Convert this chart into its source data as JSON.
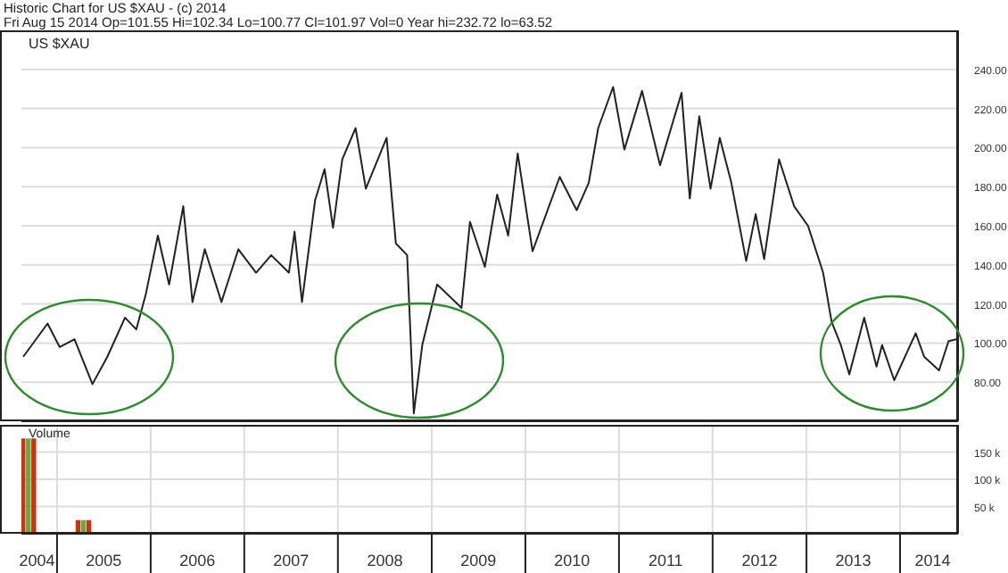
{
  "chart_data": [
    {
      "type": "line",
      "title": "Historic Chart for US $XAU - (c) 2014",
      "subtitle": "Fri Aug 15 2014  Op=101.55  Hi=102.34  Lo=100.77  Cl=101.97  Vol=0  Year hi=232.72  lo=63.52",
      "annotations": [
        "US $XAU"
      ],
      "x": [
        "2004-08-22",
        "2004-11-25",
        "2005-01-11",
        "2005-03-10",
        "2005-05-19",
        "2005-07-16",
        "2005-09-23",
        "2005-11-06",
        "2005-12-13",
        "2006-01-29",
        "2006-03-14",
        "2006-05-08",
        "2006-06-13",
        "2006-07-31",
        "2006-10-04",
        "2006-12-09",
        "2007-02-16",
        "2007-04-16",
        "2007-06-24",
        "2007-07-16",
        "2007-08-14",
        "2007-10-04",
        "2007-11-10",
        "2007-12-13",
        "2008-01-18",
        "2008-03-10",
        "2008-04-19",
        "2008-07-09",
        "2008-08-14",
        "2008-09-27",
        "2008-10-23",
        "2008-11-25",
        "2009-01-22",
        "2009-04-27",
        "2009-05-30",
        "2009-07-27",
        "2009-09-13",
        "2009-10-26",
        "2009-12-02",
        "2010-01-29",
        "2010-05-15",
        "2010-07-20",
        "2010-09-05",
        "2010-10-12",
        "2010-12-09",
        "2011-01-22",
        "2011-04-01",
        "2011-06-10",
        "2011-09-02",
        "2011-10-04",
        "2011-11-10",
        "2011-12-24",
        "2012-01-29",
        "2012-03-14",
        "2012-05-11",
        "2012-06-17",
        "2012-07-20",
        "2012-09-16",
        "2012-11-14",
        "2013-01-07",
        "2013-03-07",
        "2013-04-09",
        "2013-05-15",
        "2013-06-17",
        "2013-08-14",
        "2013-10-01",
        "2013-10-23",
        "2013-12-09",
        "2014-03-03",
        "2014-04-05",
        "2014-06-02",
        "2014-07-09",
        "2014-08-11"
      ],
      "series": [
        {
          "color": "#222222",
          "values": [
            93,
            110,
            98,
            102,
            79,
            93,
            113,
            107,
            125,
            155,
            130,
            170,
            121,
            148,
            121,
            148,
            136,
            145,
            136,
            157,
            121,
            173,
            189,
            159,
            194,
            210,
            179,
            205,
            151,
            145,
            64,
            99,
            130,
            118,
            162,
            139,
            176,
            155,
            197,
            147,
            185,
            168,
            182,
            210,
            231,
            199,
            229,
            191,
            228,
            174,
            216,
            179,
            205,
            182,
            142,
            166,
            143,
            194,
            170,
            160,
            136,
            111,
            99,
            84,
            113,
            88,
            99,
            81,
            105,
            93,
            86,
            101,
            102
          ]
        }
      ],
      "xlim": [
        "2004-08-15",
        "2014-08-15"
      ],
      "ylim": [
        60,
        260
      ],
      "yticks": [
        {
          "value": 80,
          "label": "80.00"
        },
        {
          "value": 100,
          "label": "100.00"
        },
        {
          "value": 120,
          "label": "120.00"
        },
        {
          "value": 140,
          "label": "140.00"
        },
        {
          "value": 160,
          "label": "160.00"
        },
        {
          "value": 180,
          "label": "180.00"
        },
        {
          "value": 200,
          "label": "200.00"
        },
        {
          "value": 220,
          "label": "220.00"
        },
        {
          "value": 240,
          "label": "240.00"
        }
      ],
      "grid": "y",
      "tick_labels": "y",
      "marker": "none",
      "line_style": "solid"
    },
    {
      "type": "bar",
      "title": "Volume",
      "x": [
        "2004-08-22",
        "2004-09-12",
        "2004-10-03",
        "2005-03-25",
        "2005-04-15",
        "2005-05-06"
      ],
      "series": [
        {
          "colors": [
            "#cc3311",
            "#66aa44",
            "#cc3311",
            "#cc3311",
            "#66aa44",
            "#cc3311"
          ],
          "values": [
            175000,
            175000,
            175000,
            25000,
            25000,
            25000
          ]
        }
      ],
      "xlim": [
        "2004-08-15",
        "2014-08-15"
      ],
      "xticks": [
        {
          "value": "2004-10-15",
          "label": "2004"
        },
        {
          "value": "2005-01-01",
          "label": null
        },
        {
          "value": "2005-07-02",
          "label": "2005"
        },
        {
          "value": "2006-01-01",
          "label": null
        },
        {
          "value": "2006-07-02",
          "label": "2006"
        },
        {
          "value": "2007-01-01",
          "label": null
        },
        {
          "value": "2007-07-02",
          "label": "2007"
        },
        {
          "value": "2008-01-01",
          "label": null
        },
        {
          "value": "2008-07-02",
          "label": "2008"
        },
        {
          "value": "2009-01-01",
          "label": null
        },
        {
          "value": "2009-07-02",
          "label": "2009"
        },
        {
          "value": "2010-01-01",
          "label": null
        },
        {
          "value": "2010-07-02",
          "label": "2010"
        },
        {
          "value": "2011-01-01",
          "label": null
        },
        {
          "value": "2011-07-02",
          "label": "2011"
        },
        {
          "value": "2012-01-01",
          "label": null
        },
        {
          "value": "2012-07-02",
          "label": "2012"
        },
        {
          "value": "2013-01-01",
          "label": null
        },
        {
          "value": "2013-07-02",
          "label": "2013"
        },
        {
          "value": "2014-01-01",
          "label": null
        },
        {
          "value": "2014-05-08",
          "label": "2014"
        }
      ],
      "ylim": [
        0,
        200000
      ],
      "yticks": [
        {
          "value": 50000,
          "label": "50 k"
        },
        {
          "value": 100000,
          "label": "100 k"
        },
        {
          "value": 150000,
          "label": "150 k"
        }
      ],
      "grid": true
    }
  ]
}
